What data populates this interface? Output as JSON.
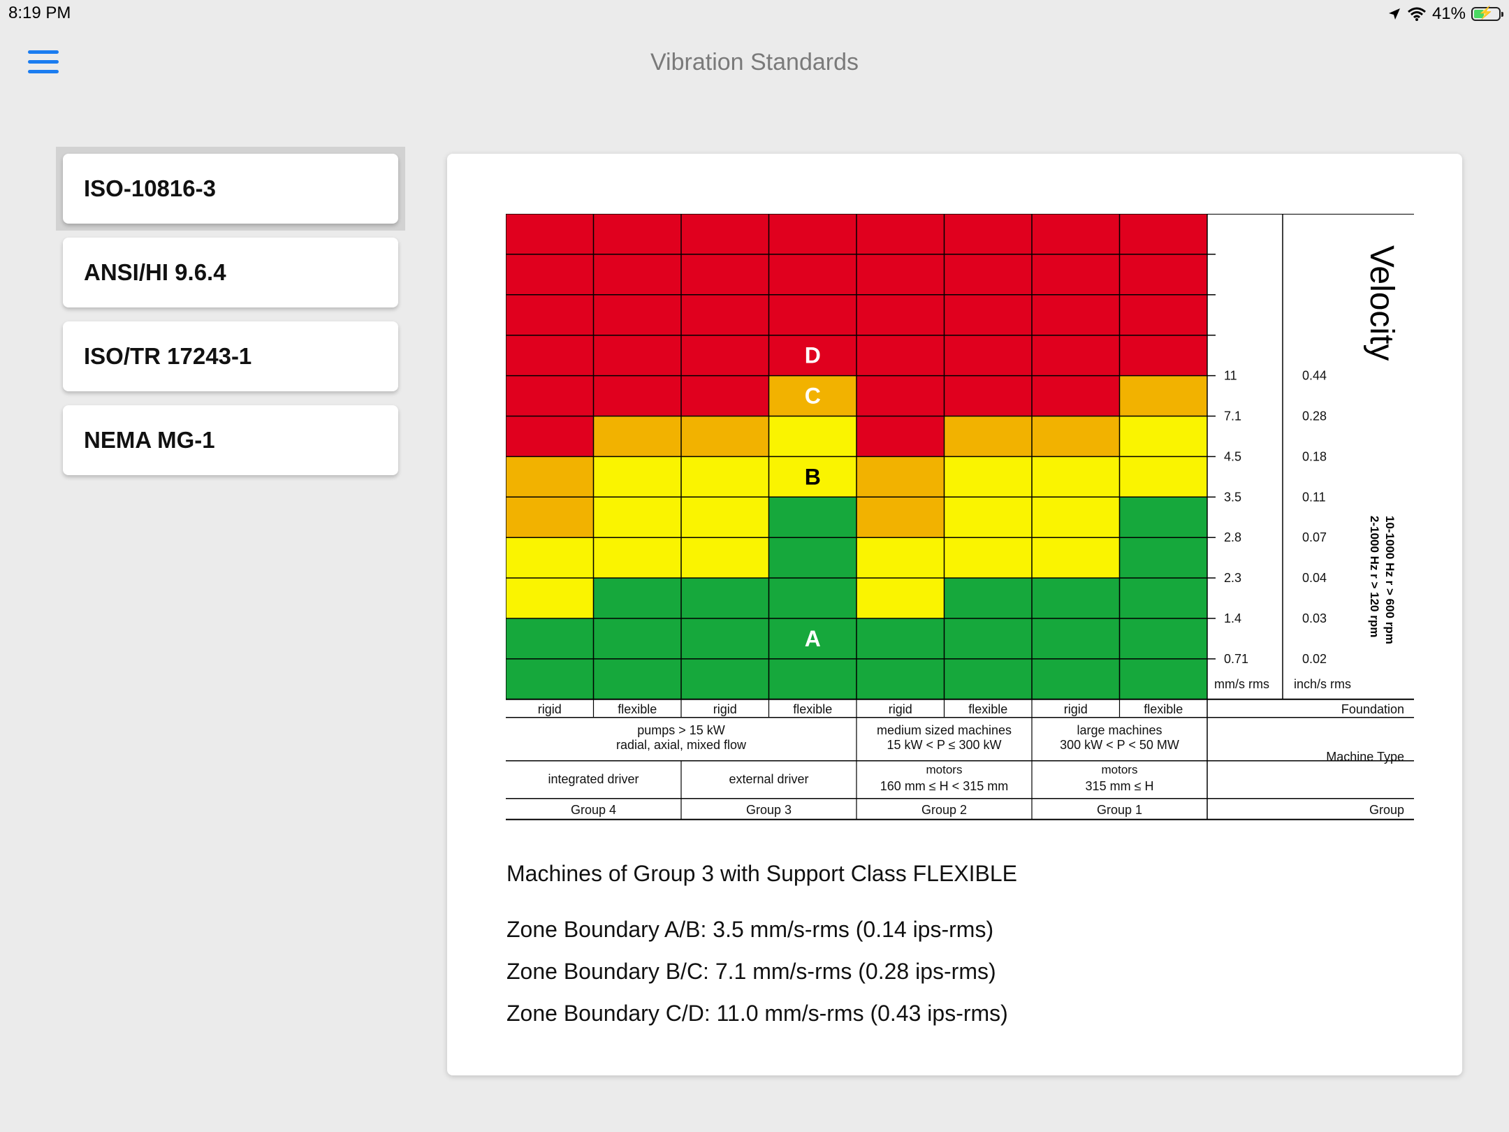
{
  "status_bar": {
    "time": "8:19 PM",
    "battery": "41%",
    "battery_level": 0.41,
    "icons": [
      "location-arrow-icon",
      "wifi-icon",
      "battery-charging-icon"
    ]
  },
  "nav": {
    "title": "Vibration Standards",
    "menu_icon": "hamburger-menu-icon",
    "accent": "#1a7cf0"
  },
  "sidebar": {
    "selected_index": 0,
    "items": [
      {
        "label": "ISO-10816-3"
      },
      {
        "label": "ANSI/HI 9.6.4"
      },
      {
        "label": "ISO/TR 17243-1"
      },
      {
        "label": "NEMA MG-1"
      }
    ]
  },
  "chart": {
    "title": "Velocity",
    "freq_note": [
      "10-1000 Hz r > 600 rpm",
      "2-1000 Hz r > 120 rpm"
    ],
    "mm_unit": "mm/s rms",
    "inch_unit": "inch/s rms",
    "mm_ticks": [
      "11",
      "7.1",
      "4.5",
      "3.5",
      "2.8",
      "2.3",
      "1.4",
      "0.71"
    ],
    "inch_ticks": [
      "0.44",
      "0.28",
      "0.18",
      "0.11",
      "0.07",
      "0.04",
      "0.03",
      "0.02"
    ],
    "zone_labels": [
      "D",
      "C",
      "B",
      "A"
    ],
    "zone_colors": {
      "A": "#16a83c",
      "B": "#faf400",
      "C": "#f2b200",
      "D": "#e0001e"
    },
    "foundation_header": "Foundation",
    "foundations": [
      "rigid",
      "flexible",
      "rigid",
      "flexible",
      "rigid",
      "flexible",
      "rigid",
      "flexible"
    ],
    "machine_type_header": "Machine Type",
    "machine_types": [
      {
        "line1": "pumps > 15 kW",
        "line2": "radial, axial, mixed flow"
      },
      {
        "line1": "medium sized machines",
        "line2": "15 kW < P ≤ 300 kW"
      },
      {
        "line1": "large machines",
        "line2": "300 kW < P < 50 MW"
      }
    ],
    "drivers": [
      {
        "line1": "integrated driver"
      },
      {
        "line1": "external driver"
      },
      {
        "line1": "motors",
        "line2": "160 mm ≤ H < 315 mm"
      },
      {
        "line1": "motors",
        "line2": "315 mm ≤ H"
      }
    ],
    "group_header": "Group",
    "groups": [
      "Group 4",
      "Group 3",
      "Group 2",
      "Group 1"
    ]
  },
  "chart_data": {
    "type": "heatmap",
    "title": "Velocity",
    "columns": [
      "Group 4 rigid",
      "Group 4 flexible",
      "Group 3 rigid",
      "Group 3 flexible",
      "Group 2 rigid",
      "Group 2 flexible",
      "Group 1 rigid",
      "Group 1 flexible"
    ],
    "rows_top_to_bottom_mm_s": [
      "",
      "",
      "",
      "11",
      "7.1",
      "4.5",
      "3.5",
      "2.8",
      "2.3",
      "1.4",
      "0.71",
      ""
    ],
    "zone_grid_top_to_bottom": [
      [
        "D",
        "D",
        "D",
        "D",
        "D",
        "D",
        "D",
        "D"
      ],
      [
        "D",
        "D",
        "D",
        "D",
        "D",
        "D",
        "D",
        "D"
      ],
      [
        "D",
        "D",
        "D",
        "D",
        "D",
        "D",
        "D",
        "D"
      ],
      [
        "D",
        "D",
        "D",
        "D",
        "D",
        "D",
        "D",
        "D"
      ],
      [
        "D",
        "D",
        "D",
        "C",
        "D",
        "D",
        "D",
        "C"
      ],
      [
        "D",
        "C",
        "C",
        "B",
        "D",
        "C",
        "C",
        "B"
      ],
      [
        "C",
        "B",
        "B",
        "B",
        "C",
        "B",
        "B",
        "B"
      ],
      [
        "C",
        "B",
        "B",
        "A",
        "C",
        "B",
        "B",
        "A"
      ],
      [
        "B",
        "B",
        "B",
        "A",
        "B",
        "B",
        "B",
        "A"
      ],
      [
        "B",
        "A",
        "A",
        "A",
        "B",
        "A",
        "A",
        "A"
      ],
      [
        "A",
        "A",
        "A",
        "A",
        "A",
        "A",
        "A",
        "A"
      ],
      [
        "A",
        "A",
        "A",
        "A",
        "A",
        "A",
        "A",
        "A"
      ]
    ]
  },
  "info": {
    "heading": "Machines of Group 3 with Support Class FLEXIBLE",
    "boundaries": [
      "Zone Boundary A/B: 3.5 mm/s-rms (0.14 ips-rms)",
      "Zone Boundary B/C: 7.1 mm/s-rms (0.28 ips-rms)",
      "Zone Boundary C/D: 11.0 mm/s-rms (0.43 ips-rms)"
    ]
  }
}
